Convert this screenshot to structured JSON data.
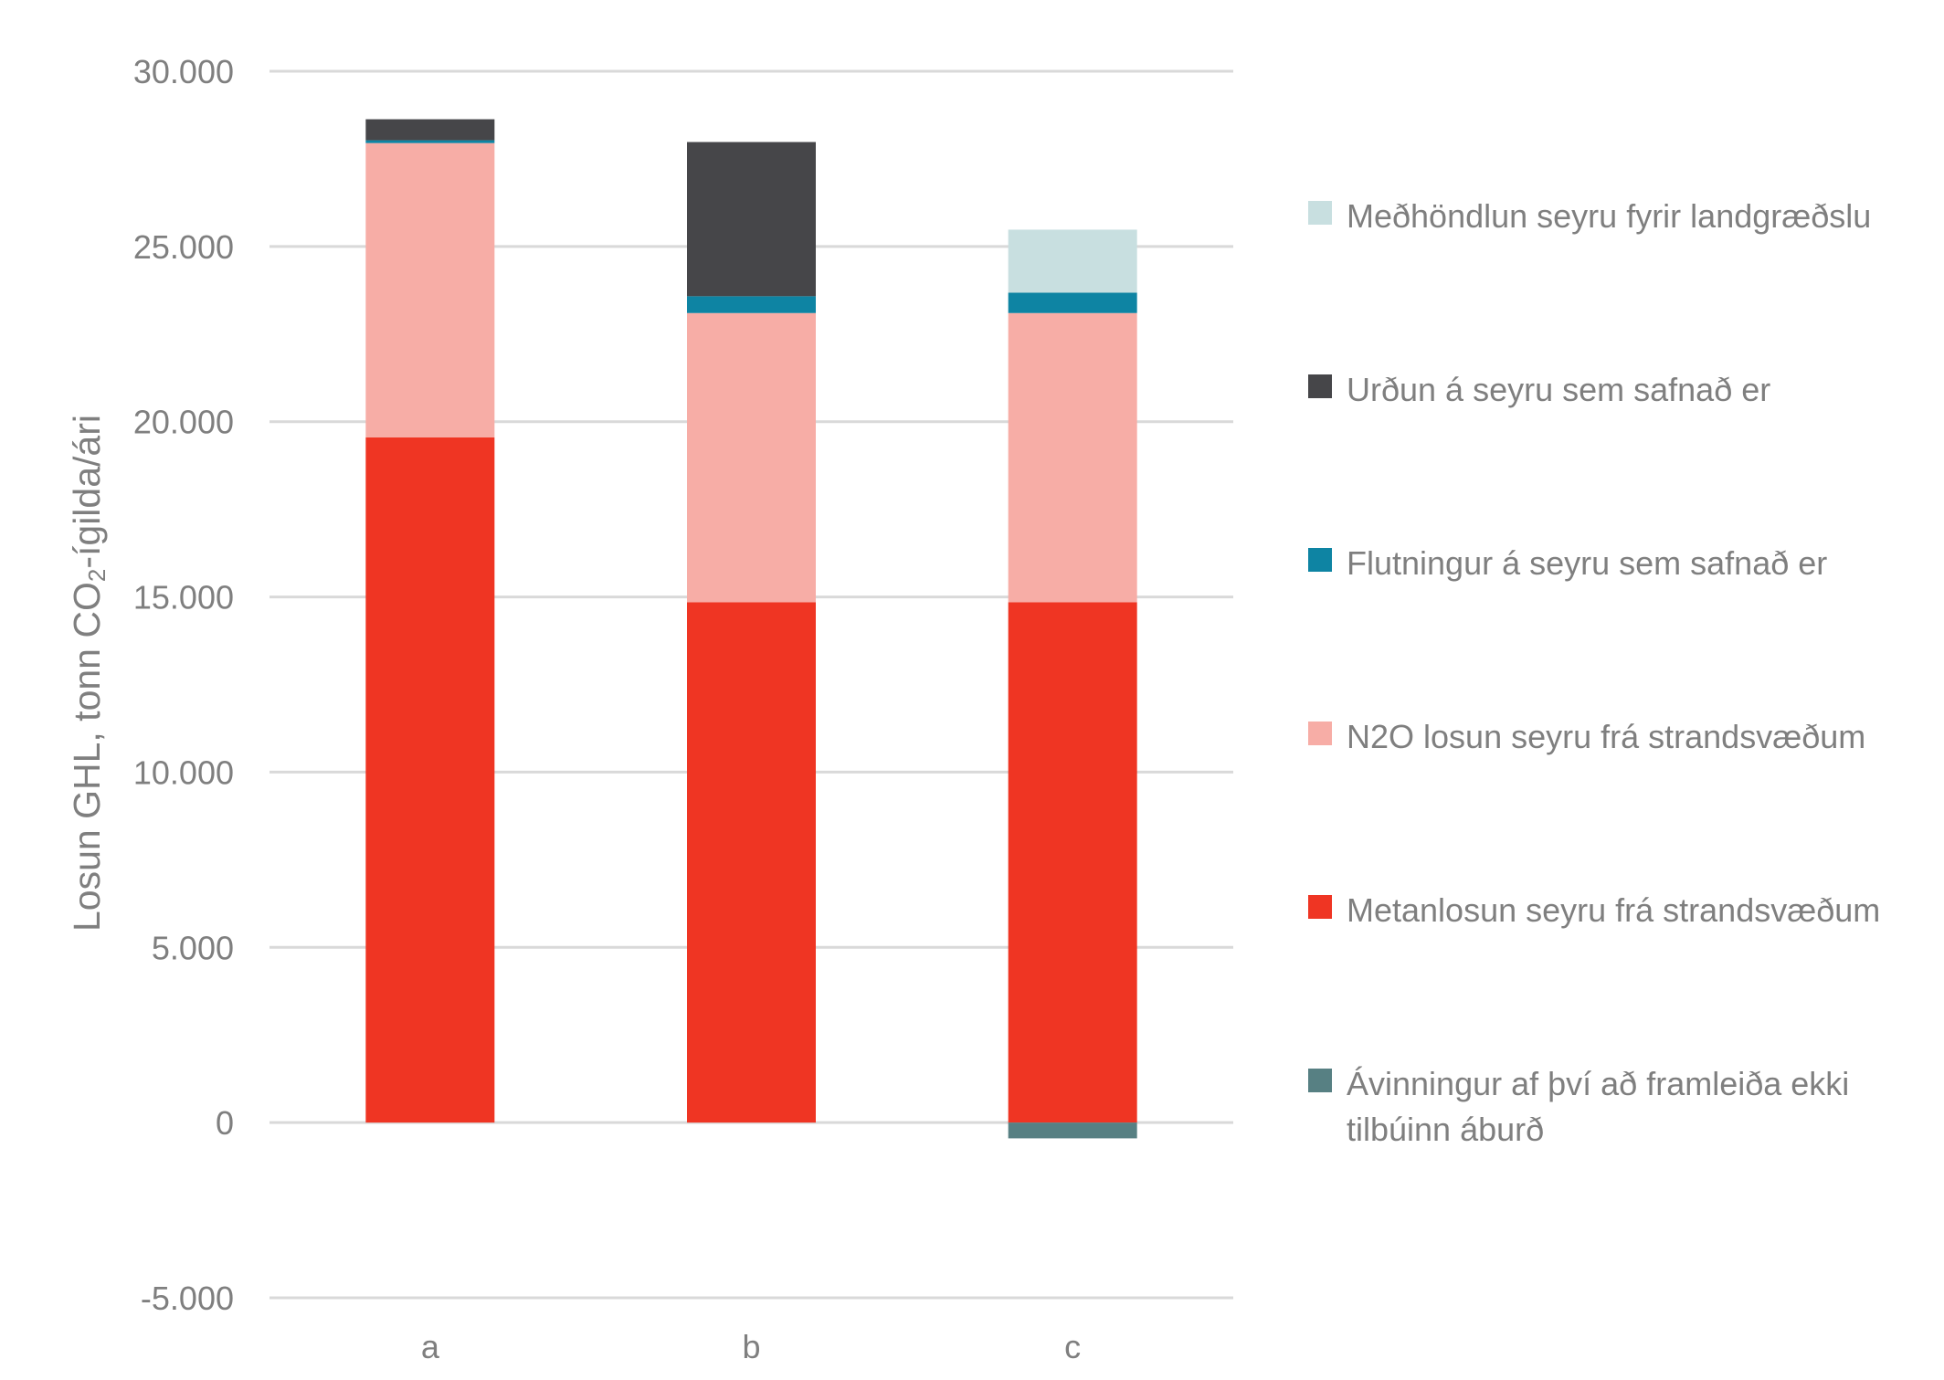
{
  "chart_data": {
    "type": "bar",
    "stacked": true,
    "categories": [
      "a",
      "b",
      "c"
    ],
    "ylabel": {
      "prefix": "Losun GHL, tonn CO",
      "subscript": "2",
      "suffix": "-ígilda/ári"
    },
    "ylim": [
      -5000,
      30000
    ],
    "yticks": [
      -5000,
      0,
      5000,
      10000,
      15000,
      20000,
      25000,
      30000
    ],
    "ytick_labels": [
      "-5.000",
      "0",
      "5.000",
      "10.000",
      "15.000",
      "20.000",
      "25.000",
      "30.000"
    ],
    "grid": true,
    "legend_position": "right",
    "series": [
      {
        "name": "Metanlosun seyru frá strandsvæðum",
        "color": "#ef3523",
        "values": [
          19550,
          14850,
          14850
        ]
      },
      {
        "name": "N2O losun seyru frá strandsvæðum",
        "color": "#f7ada6",
        "values": [
          8400,
          8250,
          8250
        ]
      },
      {
        "name": "Flutningur á seyru sem safnað er",
        "color": "#0e84a3",
        "values": [
          80,
          480,
          580
        ]
      },
      {
        "name": "Urðun á seyru sem safnað er",
        "color": "#464649",
        "values": [
          600,
          4400,
          0
        ]
      },
      {
        "name": "Meðhöndlun seyru fyrir landgræðslu",
        "color": "#c8dfe0",
        "values": [
          0,
          0,
          1800
        ]
      },
      {
        "name": "Ávinningur af því að framleiða ekki tilbúinn áburð",
        "color": "#578083",
        "values": [
          0,
          0,
          -450
        ]
      }
    ],
    "legend_order": [
      4,
      3,
      2,
      1,
      0,
      5
    ]
  }
}
